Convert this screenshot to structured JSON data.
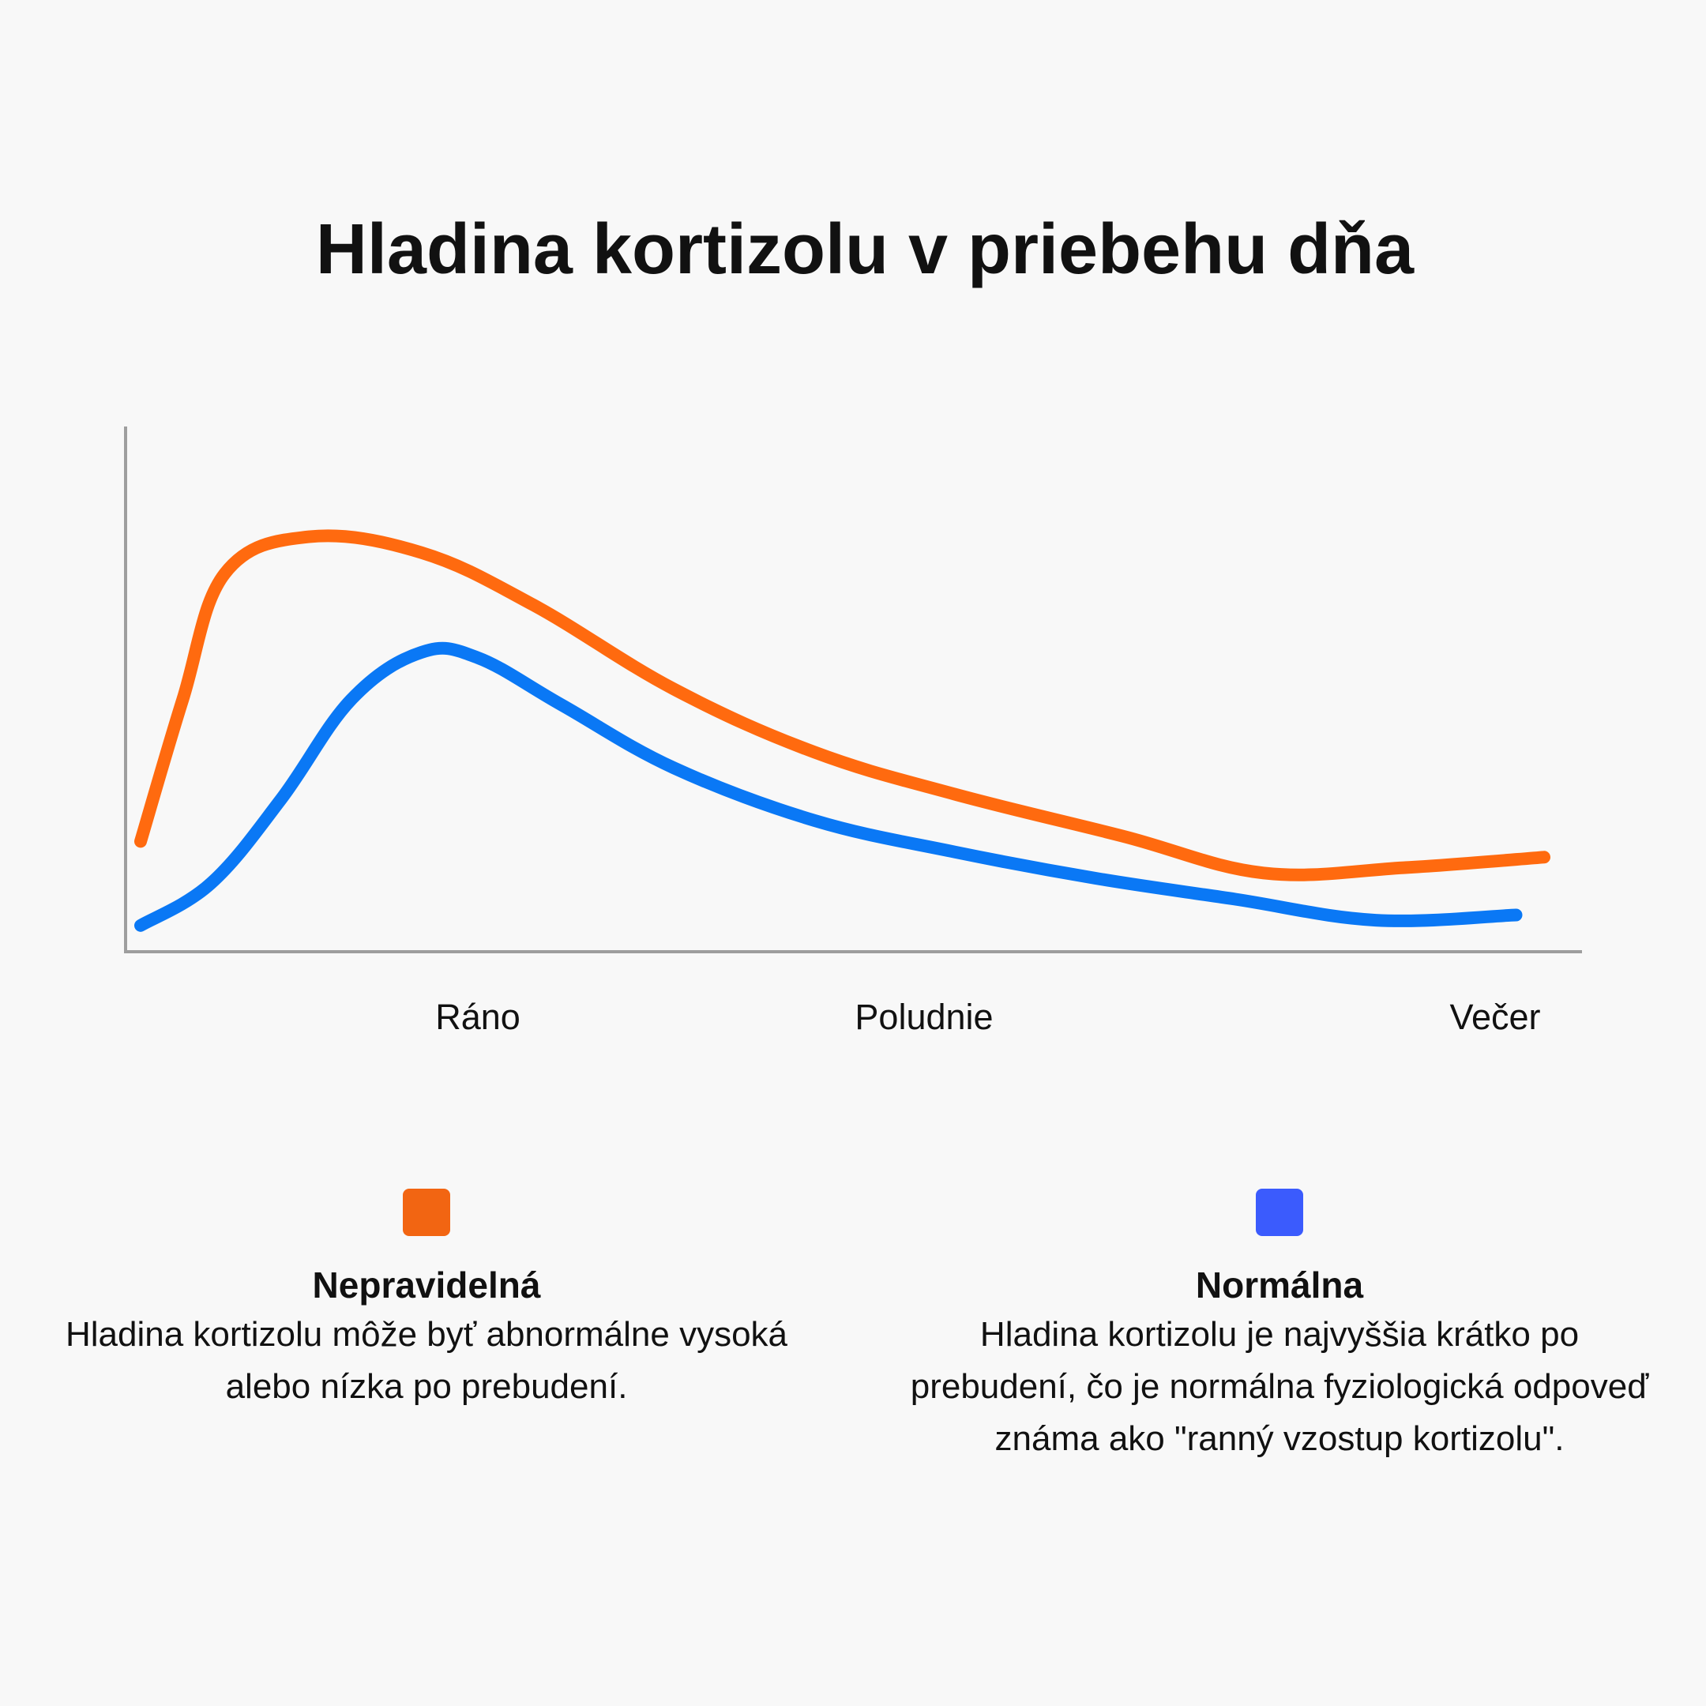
{
  "chart_data": {
    "type": "line",
    "title": "Hladina kortizolu v priebehu dňa",
    "xlabel": "",
    "ylabel": "",
    "x_ticks": [
      "Ráno",
      "Poludnie",
      "Večer"
    ],
    "grid": false,
    "legend_position": "bottom",
    "series": [
      {
        "name": "Nepravidelná",
        "color": "#f26512",
        "x": [
          0,
          0.03,
          0.06,
          0.12,
          0.2,
          0.28,
          0.38,
          0.48,
          0.58,
          0.7,
          0.8,
          0.9,
          1.0
        ],
        "y": [
          0.21,
          0.48,
          0.72,
          0.79,
          0.76,
          0.66,
          0.5,
          0.38,
          0.3,
          0.22,
          0.15,
          0.16,
          0.18
        ]
      },
      {
        "name": "Normálna",
        "color": "#3b5bfd",
        "x": [
          0,
          0.05,
          0.1,
          0.15,
          0.2,
          0.24,
          0.3,
          0.38,
          0.48,
          0.58,
          0.68,
          0.78,
          0.88,
          0.98
        ],
        "y": [
          0.05,
          0.13,
          0.29,
          0.48,
          0.57,
          0.56,
          0.47,
          0.35,
          0.25,
          0.19,
          0.14,
          0.1,
          0.06,
          0.07
        ]
      }
    ]
  },
  "legend": [
    {
      "name": "Nepravidelná",
      "description_lines": [
        "Hladina kortizolu môže byť abnormálne vysoká",
        "alebo nízka po prebudení."
      ],
      "color": "#f26512"
    },
    {
      "name": "Normálna",
      "description_lines": [
        "Hladina kortizolu je najvyššia krátko po",
        "prebudení, čo je normálna fyziologická odpoveď",
        "známa ako \"ranný vzostup kortizolu\"."
      ],
      "color": "#3b5bfd"
    }
  ],
  "line_colors": {
    "Nepravidelná": "#ff6a0f",
    "Normálna": "#0a78f5"
  }
}
